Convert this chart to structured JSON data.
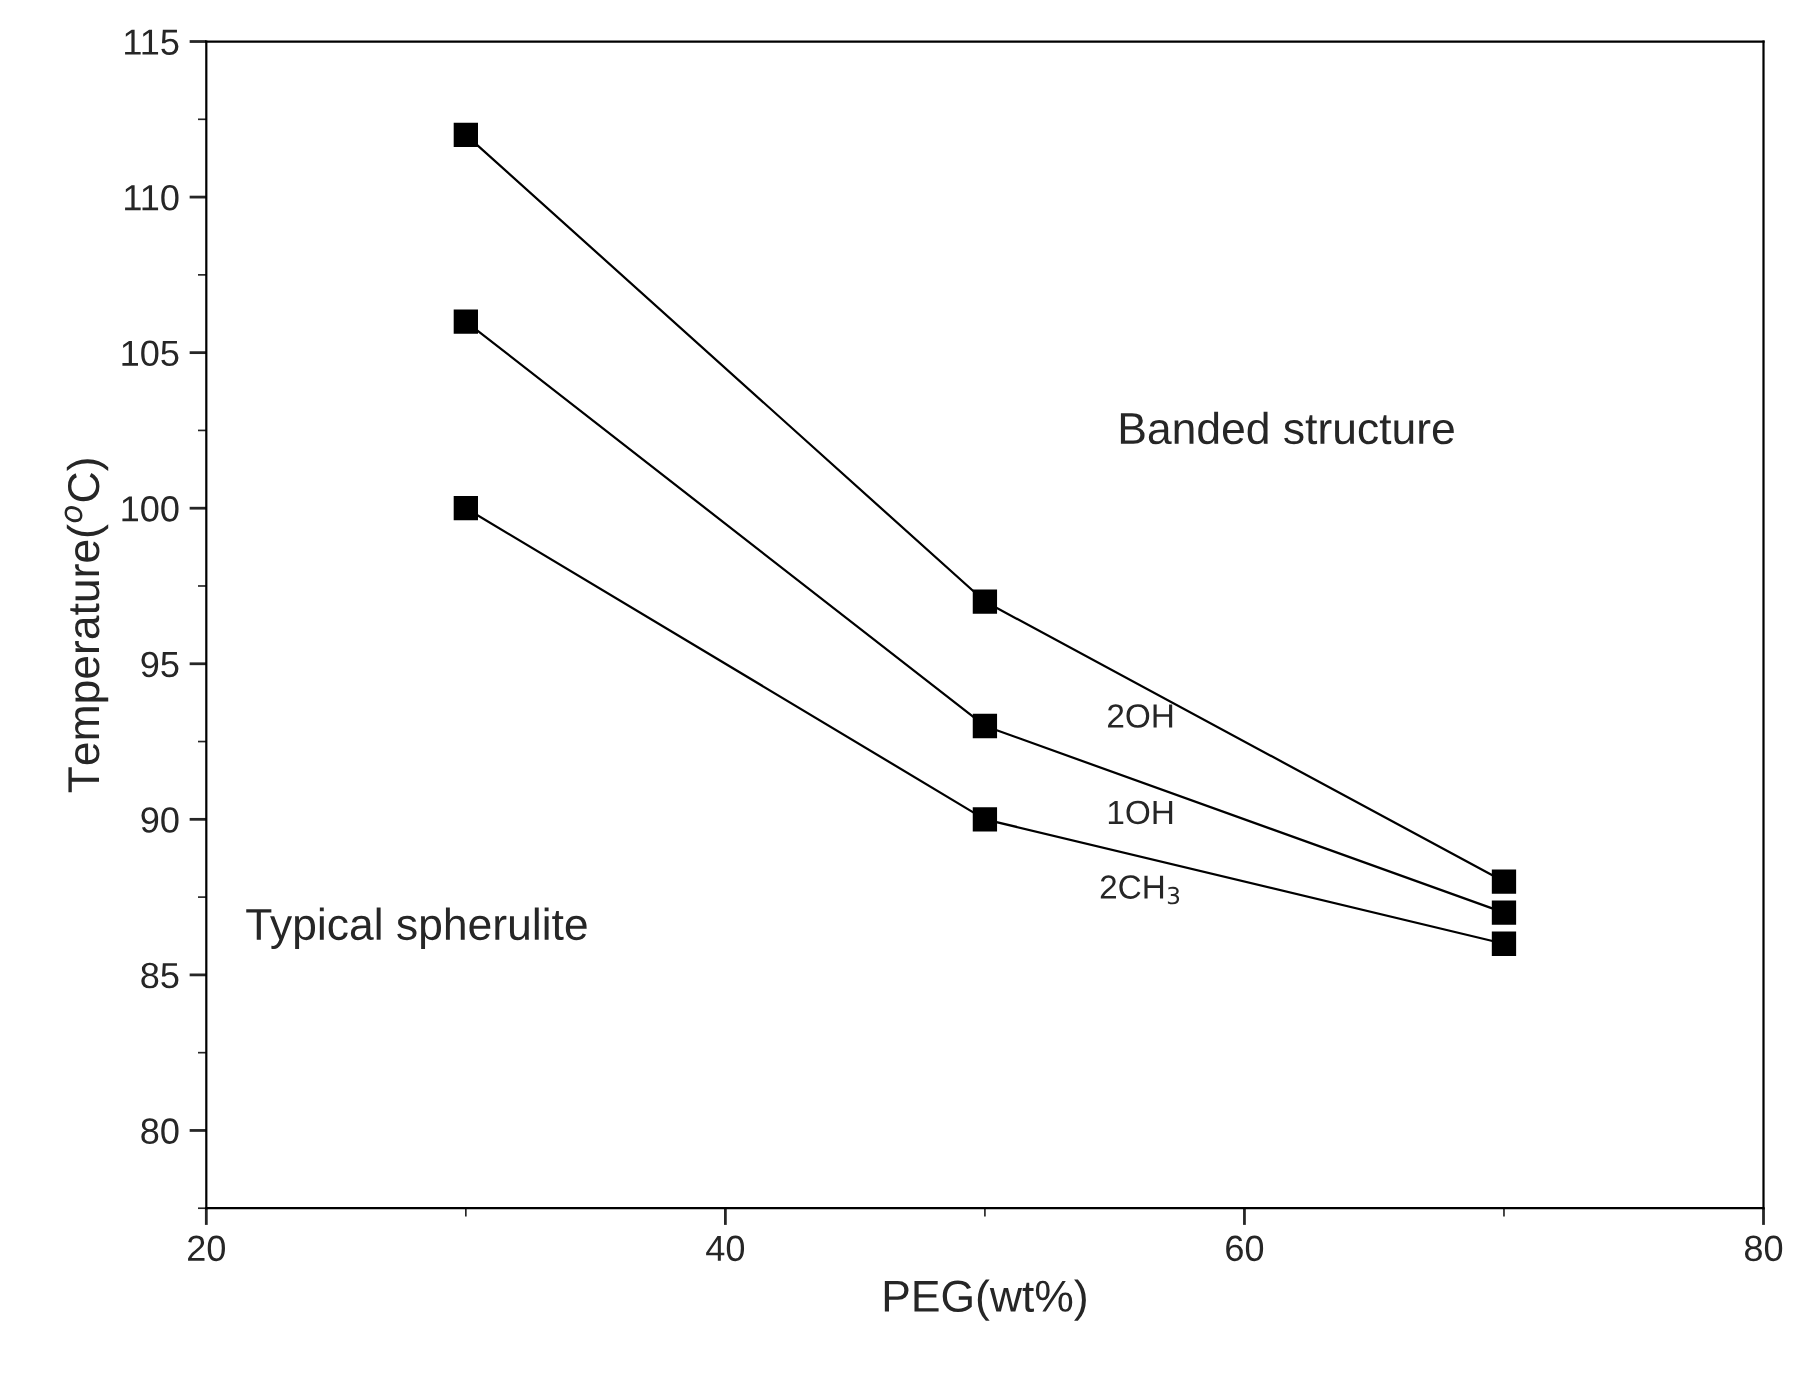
{
  "chart_data": {
    "type": "line",
    "xlabel": "PEG(wt%)",
    "ylabel": "Temperature($^{o}$C)",
    "x": [
      30,
      50,
      70
    ],
    "series": [
      {
        "name": "2OH",
        "color": "#000000",
        "values": [
          112,
          97,
          88
        ]
      },
      {
        "name": "1OH",
        "color": "#000000",
        "values": [
          106,
          93,
          87
        ]
      },
      {
        "name": "2CH$_{3}$",
        "color": "#000000",
        "values": [
          100,
          90,
          86
        ]
      }
    ],
    "xlim": [
      20,
      80
    ],
    "xticks": [
      20,
      40,
      60,
      80
    ],
    "ylim": [
      77.5,
      115
    ],
    "yticks": [
      80,
      85,
      90,
      95,
      100,
      105,
      110,
      115
    ],
    "marker": "square",
    "line_style": "solid",
    "grid": false,
    "legend": false,
    "annotations": [
      "Banded structure",
      "Typical spherulite"
    ]
  }
}
